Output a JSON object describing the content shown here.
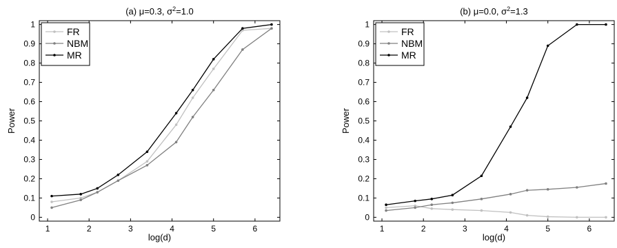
{
  "chart_data": [
    {
      "type": "line",
      "title": "(a) μ=0.3, σ²=1.0",
      "title_parts": {
        "prefix": "(a) ",
        "mu": "μ",
        "mu_eq": "=0.3, ",
        "sigma": "σ",
        "sup": "2",
        "sigma_eq": "=1.0"
      },
      "xlabel": "log(d)",
      "ylabel": "Power",
      "xlim": [
        0.8,
        6.6
      ],
      "ylim": [
        -0.02,
        1.02
      ],
      "xticks": [
        1,
        2,
        3,
        4,
        5,
        6
      ],
      "yticks": [
        0,
        0.1,
        0.2,
        0.3,
        0.4,
        0.5,
        0.6,
        0.7,
        0.8,
        0.9,
        1
      ],
      "ytick_labels": [
        "0",
        "0.1",
        "0.2",
        "0.3",
        "0.4",
        "0.5",
        "0.6",
        "0.7",
        "0.8",
        "0.9",
        "1"
      ],
      "grid": false,
      "legend_position": "top-left",
      "x": [
        1.1,
        1.8,
        2.2,
        2.7,
        3.4,
        4.1,
        4.5,
        5.0,
        5.7,
        6.4
      ],
      "series": [
        {
          "name": "FR",
          "color": "#c0c0c0",
          "values": [
            0.08,
            0.1,
            0.13,
            0.19,
            0.29,
            0.48,
            0.62,
            0.77,
            0.97,
            0.98
          ]
        },
        {
          "name": "NBM",
          "color": "#808080",
          "values": [
            0.05,
            0.09,
            0.13,
            0.19,
            0.27,
            0.39,
            0.52,
            0.66,
            0.87,
            0.98
          ]
        },
        {
          "name": "MR",
          "color": "#000000",
          "values": [
            0.11,
            0.12,
            0.15,
            0.22,
            0.34,
            0.54,
            0.66,
            0.82,
            0.98,
            1.0
          ]
        }
      ]
    },
    {
      "type": "line",
      "title": "(b) μ=0.0, σ²=1.3",
      "title_parts": {
        "prefix": "(b) ",
        "mu": "μ",
        "mu_eq": "=0.0, ",
        "sigma": "σ",
        "sup": "2",
        "sigma_eq": "=1.3"
      },
      "xlabel": "log(d)",
      "ylabel": "Power",
      "xlim": [
        0.8,
        6.6
      ],
      "ylim": [
        -0.02,
        1.02
      ],
      "xticks": [
        1,
        2,
        3,
        4,
        5,
        6
      ],
      "yticks": [
        0,
        0.1,
        0.2,
        0.3,
        0.4,
        0.5,
        0.6,
        0.7,
        0.8,
        0.9,
        1
      ],
      "ytick_labels": [
        "0",
        "0.1",
        "0.2",
        "0.3",
        "0.4",
        "0.5",
        "0.6",
        "0.7",
        "0.8",
        "0.9",
        "1"
      ],
      "grid": false,
      "legend_position": "top-left",
      "x": [
        1.1,
        1.8,
        2.2,
        2.7,
        3.4,
        4.1,
        4.5,
        5.0,
        5.7,
        6.4
      ],
      "series": [
        {
          "name": "FR",
          "color": "#c0c0c0",
          "values": [
            0.05,
            0.06,
            0.045,
            0.04,
            0.035,
            0.025,
            0.01,
            0.003,
            0.0,
            0.0
          ]
        },
        {
          "name": "NBM",
          "color": "#808080",
          "values": [
            0.035,
            0.05,
            0.065,
            0.075,
            0.095,
            0.12,
            0.14,
            0.145,
            0.155,
            0.175
          ]
        },
        {
          "name": "MR",
          "color": "#000000",
          "values": [
            0.065,
            0.085,
            0.095,
            0.115,
            0.215,
            0.47,
            0.62,
            0.89,
            1.0,
            1.0
          ]
        }
      ]
    }
  ]
}
